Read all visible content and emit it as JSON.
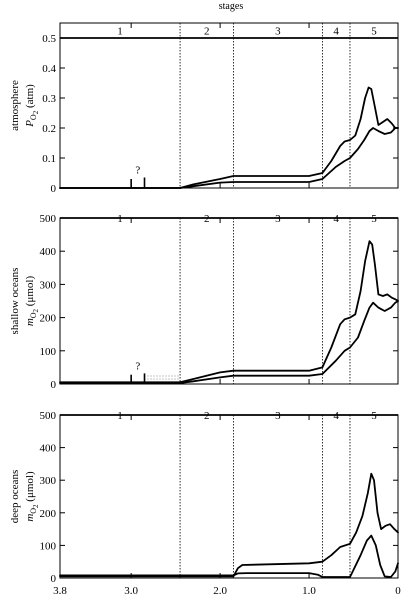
{
  "header": {
    "title": "stages"
  },
  "x_axis": {
    "range": [
      3.8,
      0
    ],
    "ticks": [
      3.8,
      3.0,
      2.0,
      1.0,
      0
    ],
    "tick_labels": [
      "3.8",
      "3.0",
      "2.0",
      "1.0",
      "0"
    ]
  },
  "stages": {
    "labels": [
      "1",
      "2",
      "3",
      "4",
      "5"
    ],
    "boundaries": [
      3.85,
      2.45,
      1.85,
      0.85,
      0.54,
      0
    ]
  },
  "colors": {
    "line": "#000000",
    "stipple": "#555555",
    "background": "#ffffff"
  },
  "chart_data": [
    {
      "type": "line",
      "ylabel": [
        "atmosphere",
        "P",
        "O",
        "2",
        " (atm)"
      ],
      "ylim": [
        0,
        0.55
      ],
      "yticks": [
        0,
        0.1,
        0.2,
        0.3,
        0.4,
        0.5
      ],
      "ytick_labels": [
        "0",
        "0.1",
        "0.2",
        "0.3",
        "0.4",
        "0.5"
      ],
      "question_mark": "?",
      "marker_ticks": [
        {
          "x": 3.0,
          "y": 0.03
        },
        {
          "x": 2.85,
          "y": 0.035
        }
      ],
      "series": [
        {
          "values": [
            [
              3.8,
              0
            ],
            [
              2.45,
              0
            ],
            [
              2.3,
              0.006
            ],
            [
              2.0,
              0.018
            ],
            [
              1.85,
              0.02
            ],
            [
              1.0,
              0.02
            ],
            [
              0.85,
              0.03
            ],
            [
              0.7,
              0.07
            ],
            [
              0.6,
              0.09
            ],
            [
              0.54,
              0.1
            ],
            [
              0.45,
              0.13
            ],
            [
              0.38,
              0.16
            ],
            [
              0.32,
              0.19
            ],
            [
              0.28,
              0.2
            ],
            [
              0.22,
              0.19
            ],
            [
              0.15,
              0.18
            ],
            [
              0.08,
              0.185
            ],
            [
              0.03,
              0.2
            ],
            [
              0,
              0.2
            ]
          ]
        },
        {
          "values": [
            [
              3.8,
              0
            ],
            [
              2.45,
              0
            ],
            [
              2.3,
              0.012
            ],
            [
              2.0,
              0.03
            ],
            [
              1.85,
              0.04
            ],
            [
              1.0,
              0.04
            ],
            [
              0.85,
              0.05
            ],
            [
              0.75,
              0.09
            ],
            [
              0.65,
              0.14
            ],
            [
              0.6,
              0.155
            ],
            [
              0.54,
              0.16
            ],
            [
              0.48,
              0.175
            ],
            [
              0.42,
              0.23
            ],
            [
              0.37,
              0.3
            ],
            [
              0.33,
              0.335
            ],
            [
              0.3,
              0.33
            ],
            [
              0.26,
              0.27
            ],
            [
              0.22,
              0.21
            ],
            [
              0.17,
              0.22
            ],
            [
              0.12,
              0.23
            ],
            [
              0.07,
              0.215
            ],
            [
              0.03,
              0.2
            ],
            [
              0,
              0.2
            ]
          ]
        }
      ]
    },
    {
      "type": "line",
      "ylabel": [
        "shallow oceans",
        "m",
        "O",
        "2",
        " (μmol)"
      ],
      "ylim": [
        0,
        500
      ],
      "yticks": [
        0,
        100,
        200,
        300,
        400,
        500
      ],
      "ytick_labels": [
        "0",
        "100",
        "200",
        "300",
        "400",
        "500"
      ],
      "question_mark": "?",
      "marker_ticks": [
        {
          "x": 3.0,
          "y": 28
        },
        {
          "x": 2.85,
          "y": 32
        }
      ],
      "stippled_region": {
        "x": [
          2.85,
          2.45
        ],
        "y": [
          0,
          28
        ]
      },
      "series": [
        {
          "values": [
            [
              3.8,
              3
            ],
            [
              2.45,
              3
            ],
            [
              2.3,
              8
            ],
            [
              2.0,
              20
            ],
            [
              1.85,
              25
            ],
            [
              1.0,
              25
            ],
            [
              0.85,
              30
            ],
            [
              0.7,
              70
            ],
            [
              0.6,
              100
            ],
            [
              0.54,
              110
            ],
            [
              0.45,
              140
            ],
            [
              0.38,
              190
            ],
            [
              0.32,
              230
            ],
            [
              0.28,
              245
            ],
            [
              0.22,
              230
            ],
            [
              0.15,
              220
            ],
            [
              0.08,
              230
            ],
            [
              0.03,
              245
            ],
            [
              0,
              250
            ]
          ]
        },
        {
          "values": [
            [
              3.8,
              5
            ],
            [
              2.45,
              5
            ],
            [
              2.3,
              15
            ],
            [
              2.0,
              35
            ],
            [
              1.85,
              40
            ],
            [
              1.0,
              40
            ],
            [
              0.85,
              50
            ],
            [
              0.75,
              110
            ],
            [
              0.65,
              180
            ],
            [
              0.6,
              195
            ],
            [
              0.54,
              200
            ],
            [
              0.48,
              210
            ],
            [
              0.42,
              280
            ],
            [
              0.37,
              370
            ],
            [
              0.32,
              430
            ],
            [
              0.29,
              420
            ],
            [
              0.26,
              360
            ],
            [
              0.22,
              270
            ],
            [
              0.17,
              265
            ],
            [
              0.12,
              270
            ],
            [
              0.07,
              260
            ],
            [
              0.03,
              255
            ],
            [
              0,
              250
            ]
          ]
        }
      ]
    },
    {
      "type": "line",
      "ylabel": [
        "deep oceans",
        "m",
        "O",
        "2",
        " (μmol)"
      ],
      "ylim": [
        0,
        500
      ],
      "yticks": [
        0,
        100,
        200,
        300,
        400,
        500
      ],
      "ytick_labels": [
        "0",
        "100",
        "200",
        "300",
        "400",
        "500"
      ],
      "series": [
        {
          "values": [
            [
              3.8,
              8
            ],
            [
              1.85,
              8
            ],
            [
              1.8,
              14
            ],
            [
              1.7,
              15
            ],
            [
              1.0,
              15
            ],
            [
              0.9,
              10
            ],
            [
              0.85,
              3
            ],
            [
              0.54,
              3
            ],
            [
              0.5,
              25
            ],
            [
              0.42,
              70
            ],
            [
              0.35,
              115
            ],
            [
              0.3,
              130
            ],
            [
              0.25,
              100
            ],
            [
              0.2,
              40
            ],
            [
              0.15,
              5
            ],
            [
              0.08,
              3
            ],
            [
              0.03,
              20
            ],
            [
              0,
              45
            ]
          ]
        },
        {
          "values": [
            [
              3.8,
              5
            ],
            [
              1.85,
              5
            ],
            [
              1.8,
              30
            ],
            [
              1.75,
              40
            ],
            [
              1.0,
              45
            ],
            [
              0.85,
              50
            ],
            [
              0.75,
              70
            ],
            [
              0.65,
              95
            ],
            [
              0.54,
              105
            ],
            [
              0.47,
              140
            ],
            [
              0.4,
              190
            ],
            [
              0.34,
              260
            ],
            [
              0.3,
              320
            ],
            [
              0.27,
              300
            ],
            [
              0.23,
              200
            ],
            [
              0.19,
              150
            ],
            [
              0.14,
              160
            ],
            [
              0.09,
              165
            ],
            [
              0.04,
              150
            ],
            [
              0,
              140
            ]
          ]
        }
      ]
    }
  ]
}
